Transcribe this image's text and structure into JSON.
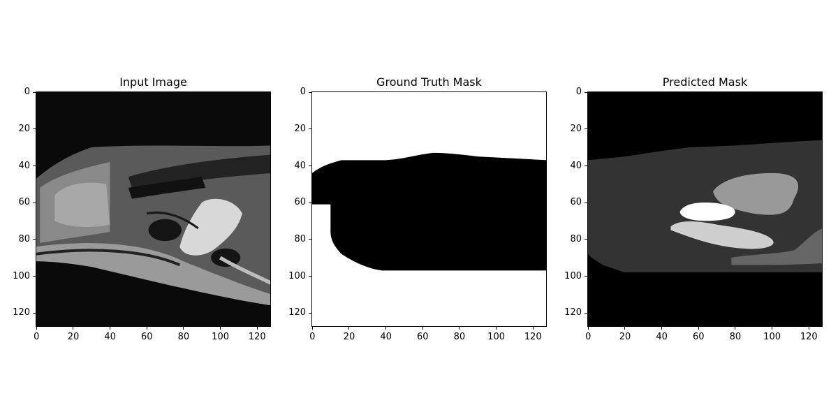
{
  "panels": [
    {
      "title": "Input Image",
      "kind": "mri",
      "xticks": [
        "0",
        "20",
        "40",
        "60",
        "80",
        "100",
        "120"
      ],
      "yticks": [
        "0",
        "20",
        "40",
        "60",
        "80",
        "100",
        "120"
      ]
    },
    {
      "title": "Ground Truth Mask",
      "kind": "gt",
      "xticks": [
        "0",
        "20",
        "40",
        "60",
        "80",
        "100",
        "120"
      ],
      "yticks": [
        "0",
        "20",
        "40",
        "60",
        "80",
        "100",
        "120"
      ]
    },
    {
      "title": "Predicted Mask",
      "kind": "pred",
      "xticks": [
        "0",
        "20",
        "40",
        "60",
        "80",
        "100",
        "120"
      ],
      "yticks": [
        "0",
        "20",
        "40",
        "60",
        "80",
        "100",
        "120"
      ]
    }
  ],
  "axis_range": [
    0,
    128
  ],
  "colors": {
    "background": "#ffffff",
    "mask_foreground": "#000000",
    "pred_background": "#000000",
    "pred_body": "#333333",
    "pred_region_light": "#cfcfcf",
    "pred_region_mid": "#999999",
    "pred_region_dark": "#666666",
    "pred_region_white": "#ffffff"
  }
}
